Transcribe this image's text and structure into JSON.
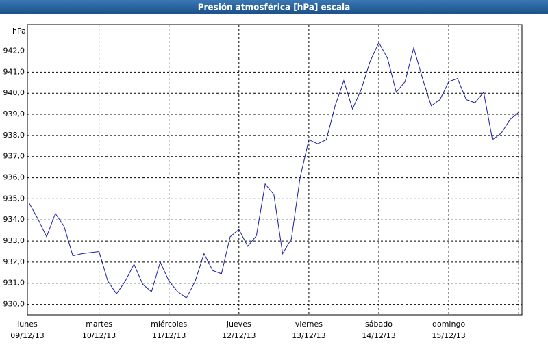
{
  "chart_data": {
    "type": "line",
    "title": "Presión atmosférica [hPa] escala",
    "y_label": "hPa",
    "x_labels": [
      {
        "day": "lunes",
        "date": "09/12/13"
      },
      {
        "day": "martes",
        "date": "10/12/13"
      },
      {
        "day": "miércoles",
        "date": "11/12/13"
      },
      {
        "day": "jueves",
        "date": "12/12/13"
      },
      {
        "day": "viernes",
        "date": "13/12/13"
      },
      {
        "day": "sábado",
        "date": "14/12/13"
      },
      {
        "day": "domingo",
        "date": "15/12/13"
      }
    ],
    "series": [
      {
        "color": "#1a1aa6",
        "values": [
          934.8,
          934.05,
          933.2,
          934.3,
          933.7,
          932.3,
          932.4,
          932.45,
          932.5,
          931.1,
          930.5,
          931.1,
          931.9,
          930.95,
          930.6,
          932.0,
          931.1,
          930.6,
          930.3,
          931.1,
          932.4,
          931.6,
          931.45,
          933.2,
          933.55,
          932.75,
          933.25,
          935.7,
          935.2,
          932.4,
          933.1,
          936.0,
          937.8,
          937.6,
          937.8,
          939.4,
          940.6,
          939.25,
          940.2,
          941.5,
          942.4,
          941.65,
          940.05,
          940.55,
          942.15,
          940.7,
          939.4,
          939.7,
          940.55,
          940.7,
          939.7,
          939.55,
          940.05,
          937.8,
          938.1,
          938.75,
          939.1
        ]
      }
    ],
    "ylim": [
      929.5,
      943.25
    ],
    "yticks": [
      {
        "value": 930,
        "label": "930,0"
      },
      {
        "value": 931,
        "label": "931,0"
      },
      {
        "value": 932,
        "label": "932,0"
      },
      {
        "value": 933,
        "label": "933,0"
      },
      {
        "value": 934,
        "label": "934,0"
      },
      {
        "value": 935,
        "label": "935,0"
      },
      {
        "value": 936,
        "label": "936,0"
      },
      {
        "value": 937,
        "label": "937,0"
      },
      {
        "value": 938,
        "label": "938,0"
      },
      {
        "value": 939,
        "label": "939,0"
      },
      {
        "value": 940,
        "label": "940,0"
      },
      {
        "value": 941,
        "label": "941,0"
      },
      {
        "value": 942,
        "label": "942,0"
      }
    ],
    "grid": true
  }
}
